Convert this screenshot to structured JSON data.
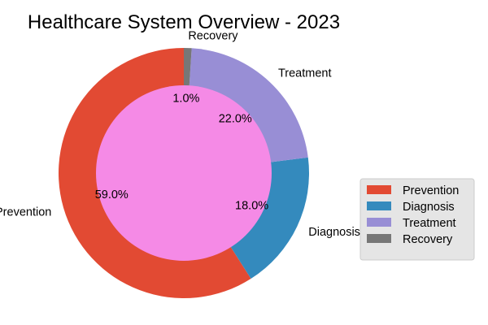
{
  "chart_data": {
    "type": "pie",
    "title": "Healthcare System Overview - 2023",
    "donut": true,
    "categories": [
      "Prevention",
      "Diagnosis",
      "Treatment",
      "Recovery"
    ],
    "values": [
      59.0,
      18.0,
      22.0,
      1.0
    ],
    "percent_labels": [
      "59.0%",
      "18.0%",
      "22.0%",
      "1.0%"
    ],
    "colors": [
      "#E24A33",
      "#348ABD",
      "#988ED5",
      "#777777"
    ],
    "center_color": "#F58AE6",
    "start_angle_deg": 90,
    "direction": "counterclockwise",
    "legend": {
      "placement": "right",
      "entries": [
        "Prevention",
        "Diagnosis",
        "Treatment",
        "Recovery"
      ],
      "background": "#E5E5E5"
    }
  }
}
